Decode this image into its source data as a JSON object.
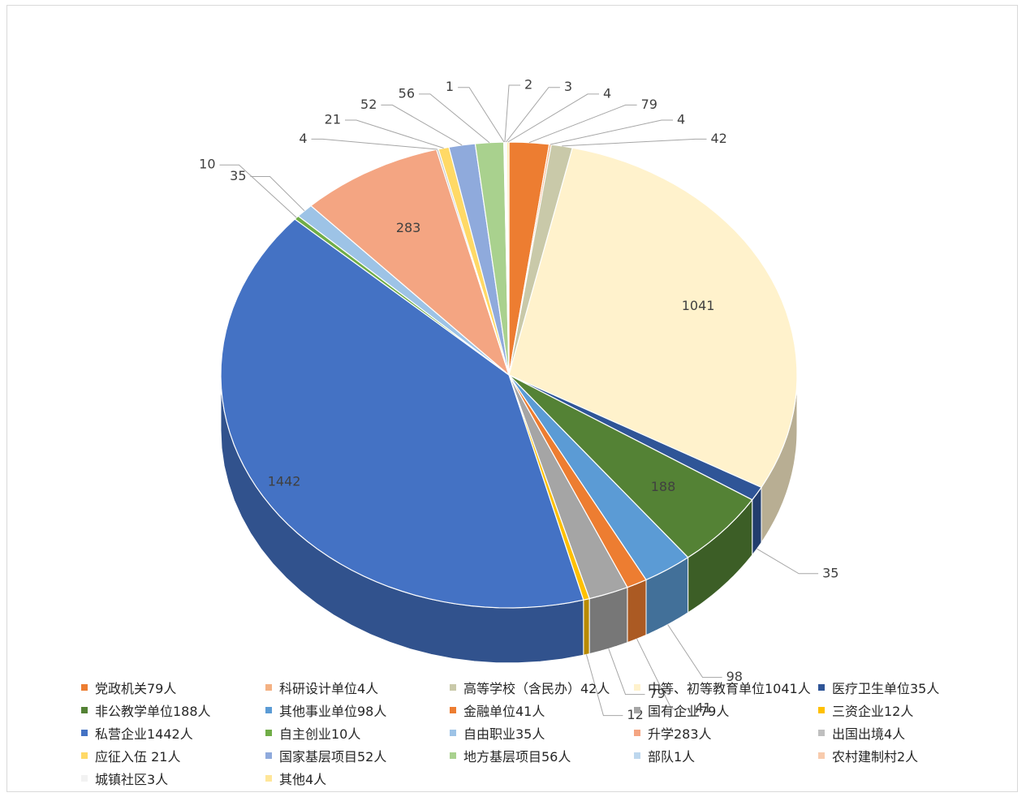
{
  "chart_data": {
    "type": "pie",
    "title": "",
    "start_slice": "党政机关79人",
    "categories": [
      "党政机关79人",
      "科研设计单位4人",
      "高等学校（含民办）42人",
      "中等、初等教育单位1041人",
      "医疗卫生单位35人",
      "非公教学单位188人",
      "其他事业单位98人",
      "金融单位41人",
      "国有企业79人",
      "三资企业12人",
      "私营企业1442人",
      "自主创业10人",
      "自由职业35人",
      "升学283人",
      "出国出境4人",
      "应征入伍 21人",
      "国家基层项目52人",
      "地方基层项目56人",
      "部队1人",
      "农村建制村2人",
      "城镇社区3人",
      "其他4人"
    ],
    "values": [
      79,
      4,
      42,
      1041,
      35,
      188,
      98,
      41,
      79,
      12,
      1442,
      10,
      35,
      283,
      4,
      21,
      52,
      56,
      1,
      2,
      3,
      4
    ],
    "data_labels": [
      "79",
      "4",
      "42",
      "1041",
      "35",
      "188",
      "98",
      "41",
      "79",
      "12",
      "1442",
      "10",
      "35",
      "283",
      "4",
      "21",
      "52",
      "56",
      "1",
      "2",
      "3",
      "4"
    ],
    "colors": [
      "#ED7D31",
      "#F4B183",
      "#C9C9A9",
      "#FFF2CC",
      "#2F5597",
      "#548235",
      "#5B9BD5",
      "#ED7D31",
      "#A5A5A5",
      "#FFC000",
      "#4472C4",
      "#70AD47",
      "#9DC3E6",
      "#F4A582",
      "#BFBFBF",
      "#FFD966",
      "#8FAADC",
      "#A9D18E",
      "#BDD7EE",
      "#F8CBAD",
      "#F2F2F2",
      "#FFE699"
    ],
    "legend_position": "bottom",
    "style": "3d-pie"
  }
}
